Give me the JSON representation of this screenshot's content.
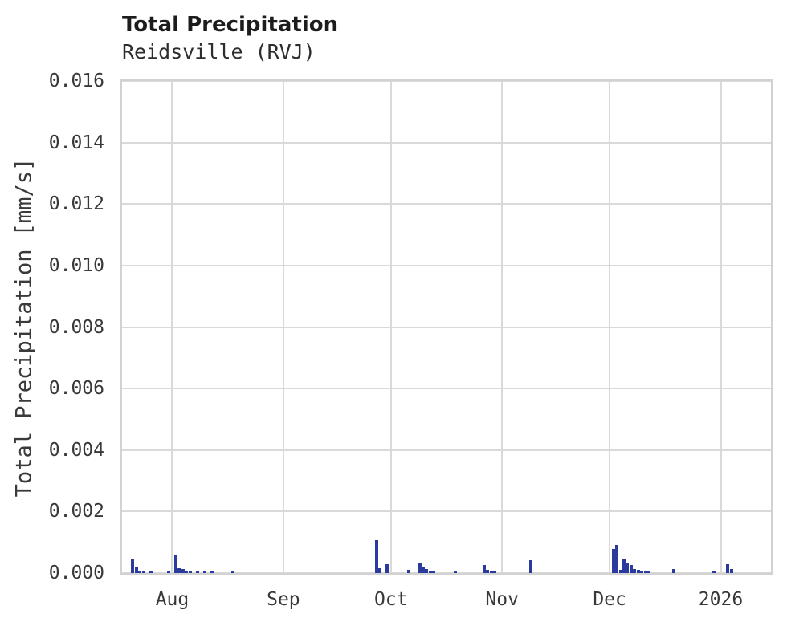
{
  "header": {
    "title": "Total Precipitation",
    "subtitle": "Reidsville (RVJ)"
  },
  "chart_data": {
    "type": "bar",
    "title": "Total Precipitation",
    "subtitle": "Reidsville (RVJ)",
    "xlabel": "",
    "ylabel": "Total Precipitation [mm/s]",
    "ylim": [
      0,
      0.016
    ],
    "x_domain": [
      "2025-07-18",
      "2026-01-15"
    ],
    "grid": true,
    "legend": "none",
    "bar_color": "#2b3a9d",
    "grid_color": "#d9d9d9",
    "border_color": "#d2d2d2",
    "yticks": [
      {
        "value": 0.0,
        "label": "0.000"
      },
      {
        "value": 0.002,
        "label": "0.002"
      },
      {
        "value": 0.004,
        "label": "0.004"
      },
      {
        "value": 0.006,
        "label": "0.006"
      },
      {
        "value": 0.008,
        "label": "0.008"
      },
      {
        "value": 0.01,
        "label": "0.010"
      },
      {
        "value": 0.012,
        "label": "0.012"
      },
      {
        "value": 0.014,
        "label": "0.014"
      },
      {
        "value": 0.016,
        "label": "0.016"
      }
    ],
    "xticks": [
      {
        "date": "2025-08-01",
        "label": "Aug"
      },
      {
        "date": "2025-09-01",
        "label": "Sep"
      },
      {
        "date": "2025-10-01",
        "label": "Oct"
      },
      {
        "date": "2025-11-01",
        "label": "Nov"
      },
      {
        "date": "2025-12-01",
        "label": "Dec"
      },
      {
        "date": "2026-01-01",
        "label": "2026"
      }
    ],
    "bars": [
      {
        "date": "2025-07-21",
        "value": 0.00047
      },
      {
        "date": "2025-07-22",
        "value": 0.00019
      },
      {
        "date": "2025-07-23",
        "value": 7e-05
      },
      {
        "date": "2025-07-24",
        "value": 5e-05
      },
      {
        "date": "2025-07-26",
        "value": 4e-05
      },
      {
        "date": "2025-07-31",
        "value": 5e-05
      },
      {
        "date": "2025-08-02",
        "value": 0.00061
      },
      {
        "date": "2025-08-03",
        "value": 0.00016
      },
      {
        "date": "2025-08-04",
        "value": 0.00013
      },
      {
        "date": "2025-08-05",
        "value": 8e-05
      },
      {
        "date": "2025-08-06",
        "value": 7e-05
      },
      {
        "date": "2025-08-08",
        "value": 7e-05
      },
      {
        "date": "2025-08-10",
        "value": 7e-05
      },
      {
        "date": "2025-08-12",
        "value": 7e-05
      },
      {
        "date": "2025-08-18",
        "value": 7e-05
      },
      {
        "date": "2025-09-27",
        "value": 0.00108
      },
      {
        "date": "2025-09-28",
        "value": 0.00016
      },
      {
        "date": "2025-09-30",
        "value": 0.00028
      },
      {
        "date": "2025-10-06",
        "value": 0.0001
      },
      {
        "date": "2025-10-09",
        "value": 0.00035
      },
      {
        "date": "2025-10-10",
        "value": 0.00018
      },
      {
        "date": "2025-10-11",
        "value": 0.00013
      },
      {
        "date": "2025-10-12",
        "value": 9e-05
      },
      {
        "date": "2025-10-13",
        "value": 7e-05
      },
      {
        "date": "2025-10-19",
        "value": 8e-05
      },
      {
        "date": "2025-10-27",
        "value": 0.00026
      },
      {
        "date": "2025-10-28",
        "value": 0.00011
      },
      {
        "date": "2025-10-29",
        "value": 7e-05
      },
      {
        "date": "2025-10-30",
        "value": 6e-05
      },
      {
        "date": "2025-11-09",
        "value": 0.00043
      },
      {
        "date": "2025-12-02",
        "value": 0.00079
      },
      {
        "date": "2025-12-03",
        "value": 0.00091
      },
      {
        "date": "2025-12-04",
        "value": 0.0001
      },
      {
        "date": "2025-12-05",
        "value": 0.00045
      },
      {
        "date": "2025-12-06",
        "value": 0.00035
      },
      {
        "date": "2025-12-07",
        "value": 0.00026
      },
      {
        "date": "2025-12-08",
        "value": 0.00014
      },
      {
        "date": "2025-12-09",
        "value": 0.00011
      },
      {
        "date": "2025-12-10",
        "value": 9e-05
      },
      {
        "date": "2025-12-11",
        "value": 8e-05
      },
      {
        "date": "2025-12-12",
        "value": 6e-05
      },
      {
        "date": "2025-12-19",
        "value": 0.00013
      },
      {
        "date": "2025-12-30",
        "value": 8e-05
      },
      {
        "date": "2026-01-03",
        "value": 0.00029
      },
      {
        "date": "2026-01-04",
        "value": 0.00013
      }
    ]
  }
}
